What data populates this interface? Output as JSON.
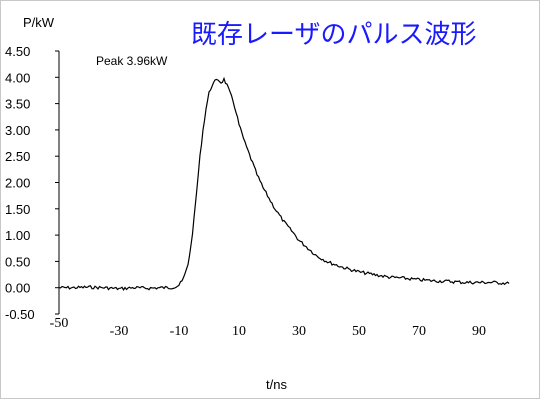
{
  "chart_data": {
    "type": "line",
    "title": "既存レーザのパルス波形",
    "xlabel": "t/ns",
    "ylabel": "P/kW",
    "annotation": "Peak 3.96kW",
    "xlim": [
      -50,
      100
    ],
    "ylim": [
      -0.5,
      4.5
    ],
    "x_ticks": [
      -50,
      -30,
      -10,
      10,
      30,
      50,
      70,
      90
    ],
    "y_ticks": [
      "-0.50",
      "0.00",
      "0.50",
      "1.00",
      "1.50",
      "2.00",
      "2.50",
      "3.00",
      "3.50",
      "4.00",
      "4.50"
    ],
    "title_color": "#1a1aff",
    "line_color": "#000000",
    "grid": false,
    "series": [
      {
        "x": [
          -50,
          -45,
          -40,
          -35,
          -30,
          -25,
          -20,
          -16,
          -13,
          -11,
          -10,
          -9,
          -8,
          -7,
          -6,
          -5,
          -4,
          -3,
          -2,
          -1,
          0,
          1,
          2,
          3,
          4,
          5,
          6,
          7,
          8,
          9,
          10,
          12,
          14,
          16,
          18,
          20,
          22,
          25,
          28,
          30,
          33,
          36,
          40,
          45,
          50,
          55,
          60,
          65,
          70,
          75,
          80,
          85,
          90,
          95,
          100
        ],
        "y": [
          0.0,
          0.0,
          0.01,
          0.0,
          -0.02,
          0.0,
          -0.01,
          0.0,
          0.0,
          0.02,
          0.05,
          0.12,
          0.25,
          0.45,
          0.8,
          1.3,
          1.9,
          2.5,
          3.0,
          3.4,
          3.7,
          3.85,
          3.92,
          3.96,
          3.9,
          3.96,
          3.85,
          3.7,
          3.55,
          3.35,
          3.1,
          2.75,
          2.45,
          2.15,
          1.9,
          1.7,
          1.5,
          1.25,
          1.05,
          0.9,
          0.75,
          0.6,
          0.48,
          0.38,
          0.3,
          0.25,
          0.2,
          0.18,
          0.15,
          0.13,
          0.12,
          0.1,
          0.1,
          0.1,
          0.08
        ]
      }
    ]
  }
}
